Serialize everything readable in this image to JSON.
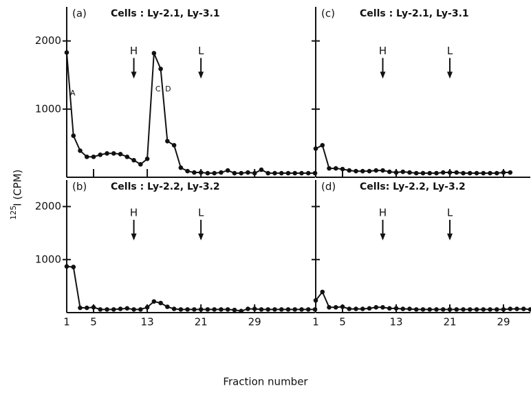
{
  "ylabel_superscript": "125",
  "ylabel": "I (CPM)",
  "xlabel": "Fraction number",
  "chart_data": [
    {
      "type": "line",
      "label": "(a)",
      "subtitle": "Cells : Ly-2.1, Ly-3.1",
      "x": [
        1,
        2,
        3,
        4,
        5,
        6,
        7,
        8,
        9,
        10,
        11,
        12,
        13,
        14,
        15,
        16,
        17,
        18,
        19,
        20,
        21,
        22,
        23,
        24,
        25,
        26,
        27,
        28,
        29,
        30,
        31,
        32,
        33,
        34,
        35,
        36,
        37,
        38
      ],
      "values": [
        1830,
        610,
        390,
        300,
        300,
        330,
        350,
        350,
        340,
        300,
        250,
        190,
        270,
        1820,
        1590,
        530,
        470,
        140,
        90,
        70,
        70,
        60,
        60,
        70,
        100,
        60,
        60,
        70,
        60,
        110,
        60,
        60,
        60,
        60,
        60,
        60,
        60,
        60
      ],
      "color": "#111111",
      "xlim": [
        1,
        38
      ],
      "ylim": [
        0,
        2500
      ],
      "xticks": [
        1,
        5,
        13,
        21,
        29
      ],
      "yticks": [
        1000,
        2000
      ],
      "show_xtick_labels": false,
      "show_ytick_labels": true,
      "arrows": [
        {
          "text": "H",
          "x": 11
        },
        {
          "text": "L",
          "x": 21
        }
      ],
      "annotations": [
        {
          "text": "A",
          "x": 1.9,
          "y": 1230
        },
        {
          "text": "C",
          "x": 14.6,
          "y": 1290
        },
        {
          "text": "D",
          "x": 16.1,
          "y": 1290
        }
      ]
    },
    {
      "type": "line",
      "label": "(b)",
      "subtitle": "Cells : Ly-2.2, Ly-3.2",
      "x": [
        1,
        2,
        3,
        4,
        5,
        6,
        7,
        8,
        9,
        10,
        11,
        12,
        13,
        14,
        15,
        16,
        17,
        18,
        19,
        20,
        21,
        22,
        23,
        24,
        25,
        26,
        27,
        28,
        29,
        30,
        31,
        32,
        33,
        34,
        35,
        36,
        37,
        38
      ],
      "values": [
        870,
        860,
        90,
        90,
        100,
        60,
        60,
        60,
        70,
        80,
        60,
        60,
        100,
        210,
        180,
        110,
        70,
        60,
        60,
        60,
        60,
        60,
        60,
        60,
        60,
        50,
        30,
        70,
        70,
        60,
        60,
        60,
        60,
        60,
        60,
        60,
        60,
        60
      ],
      "color": "#111111",
      "xlim": [
        1,
        38
      ],
      "ylim": [
        0,
        2500
      ],
      "xticks": [
        1,
        5,
        13,
        21,
        29
      ],
      "yticks": [
        1000,
        2000
      ],
      "show_xtick_labels": true,
      "show_ytick_labels": true,
      "arrows": [
        {
          "text": "H",
          "x": 11
        },
        {
          "text": "L",
          "x": 21
        }
      ]
    },
    {
      "type": "line",
      "label": "(c)",
      "subtitle": "Cells : Ly-2.1, Ly-3.1",
      "x": [
        1,
        2,
        3,
        4,
        5,
        6,
        7,
        8,
        9,
        10,
        11,
        12,
        13,
        14,
        15,
        16,
        17,
        18,
        19,
        20,
        21,
        22,
        23,
        24,
        25,
        26,
        27,
        28,
        29,
        30
      ],
      "values": [
        420,
        470,
        130,
        130,
        120,
        100,
        90,
        90,
        90,
        100,
        100,
        80,
        70,
        80,
        70,
        60,
        60,
        60,
        60,
        70,
        70,
        70,
        60,
        60,
        60,
        60,
        60,
        60,
        70,
        70
      ],
      "color": "#111111",
      "xlim": [
        1,
        33
      ],
      "ylim": [
        0,
        2500
      ],
      "xticks": [
        1,
        5,
        13,
        21,
        29
      ],
      "yticks": [
        1000,
        2000
      ],
      "show_xtick_labels": false,
      "show_ytick_labels": false,
      "arrows": [
        {
          "text": "H",
          "x": 11
        },
        {
          "text": "L",
          "x": 21
        }
      ]
    },
    {
      "type": "line",
      "label": "(d)",
      "subtitle": "Cells: Ly-2.2, Ly-3.2",
      "x": [
        1,
        2,
        3,
        4,
        5,
        6,
        7,
        8,
        9,
        10,
        11,
        12,
        13,
        14,
        15,
        16,
        17,
        18,
        19,
        20,
        21,
        22,
        23,
        24,
        25,
        26,
        27,
        28,
        29,
        30,
        31,
        32,
        33
      ],
      "values": [
        230,
        390,
        100,
        100,
        110,
        70,
        70,
        70,
        80,
        100,
        100,
        80,
        80,
        70,
        70,
        60,
        60,
        60,
        60,
        60,
        60,
        60,
        60,
        60,
        60,
        60,
        60,
        60,
        60,
        70,
        70,
        70,
        60
      ],
      "color": "#111111",
      "xlim": [
        1,
        33
      ],
      "ylim": [
        0,
        2500
      ],
      "xticks": [
        1,
        5,
        13,
        21,
        29
      ],
      "yticks": [
        1000,
        2000
      ],
      "show_xtick_labels": true,
      "show_ytick_labels": false,
      "arrows": [
        {
          "text": "H",
          "x": 11
        },
        {
          "text": "L",
          "x": 21
        }
      ]
    }
  ]
}
